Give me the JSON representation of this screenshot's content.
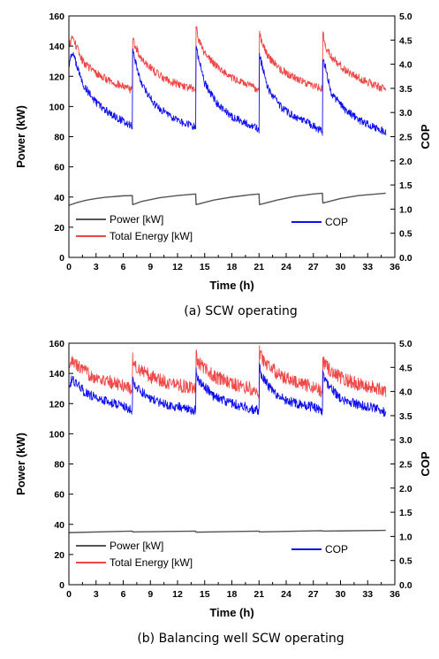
{
  "chart_data": [
    {
      "type": "line",
      "caption": "(a) SCW operating",
      "xlabel": "Time (h)",
      "ylabel": "Power (kW)",
      "y2label": "COP",
      "xlim": [
        0,
        36
      ],
      "ylim": [
        0,
        160
      ],
      "y2lim": [
        0,
        5.0
      ],
      "xticks": [
        0,
        3,
        6,
        9,
        12,
        15,
        18,
        21,
        24,
        27,
        30,
        33,
        36
      ],
      "yticks": [
        0,
        20,
        40,
        60,
        80,
        100,
        120,
        140,
        160
      ],
      "y2ticks": [
        "0.0",
        "0.5",
        "1.0",
        "1.5",
        "2.0",
        "2.5",
        "3.0",
        "3.5",
        "4.0",
        "4.5",
        "5.0"
      ],
      "legend": [
        "Power [kW]",
        "Total Energy [kW]",
        "COP"
      ],
      "colors": {
        "power": "#555555",
        "total_energy": "#ef4646",
        "cop": "#1010ee"
      },
      "series": [
        {
          "name": "Power [kW]",
          "axis": "left",
          "color": "#555555",
          "noise": 0,
          "x": [
            0,
            1,
            2,
            3,
            4,
            5,
            6,
            7,
            7.05,
            8,
            10,
            12,
            14,
            14.05,
            16,
            18,
            20,
            21,
            21.05,
            23,
            25,
            27,
            28,
            28.05,
            30,
            32,
            34,
            35
          ],
          "y": [
            34.5,
            36.5,
            38,
            39,
            39.8,
            40.3,
            40.8,
            41,
            35,
            37,
            39.5,
            41,
            42,
            35,
            38,
            40,
            41.5,
            42,
            35,
            38,
            40.5,
            42,
            42.5,
            36,
            39,
            41,
            42,
            42.5
          ]
        },
        {
          "name": "Total Energy [kW]",
          "axis": "left",
          "color": "#ef4646",
          "noise": 2.6,
          "x": [
            0,
            0.4,
            1.5,
            3,
            4.5,
            6,
            7,
            7.05,
            7.3,
            8,
            9.5,
            11,
            12.5,
            14,
            14.05,
            14.3,
            15,
            16.5,
            18,
            19.5,
            21,
            21.05,
            21.3,
            22,
            23.5,
            25,
            26.5,
            28,
            28.05,
            28.3,
            29,
            30.5,
            32,
            33.5,
            35
          ],
          "y": [
            140,
            146,
            130,
            122,
            117,
            113,
            111,
            146,
            140,
            132,
            123,
            117,
            114,
            111,
            154,
            145,
            135,
            126,
            119,
            115,
            111,
            150,
            143,
            133,
            124,
            119,
            115,
            112,
            150,
            140,
            133,
            124,
            119,
            115,
            111
          ]
        },
        {
          "name": "COP",
          "axis": "right",
          "color": "#1010ee",
          "noise": 0.08,
          "x": [
            0,
            0.4,
            1.5,
            3,
            4.5,
            6,
            7,
            7.05,
            7.3,
            8,
            9.5,
            11,
            12.5,
            14,
            14.05,
            14.3,
            15,
            16.5,
            18,
            19.5,
            21,
            21.05,
            21.3,
            22,
            23.5,
            25,
            26.5,
            28,
            28.05,
            28.3,
            29,
            30.5,
            32,
            33.5,
            35
          ],
          "y": [
            4.0,
            4.25,
            3.6,
            3.2,
            2.98,
            2.82,
            2.72,
            4.3,
            4.1,
            3.6,
            3.15,
            2.95,
            2.8,
            2.7,
            4.4,
            4.15,
            3.6,
            3.15,
            2.92,
            2.78,
            2.65,
            4.2,
            4.0,
            3.5,
            3.1,
            2.9,
            2.78,
            2.6,
            4.1,
            3.95,
            3.4,
            3.05,
            2.85,
            2.72,
            2.6
          ]
        }
      ]
    },
    {
      "type": "line",
      "caption": "(b) Balancing well SCW operating",
      "xlabel": "Time (h)",
      "ylabel": "Power (kW)",
      "y2label": "COP",
      "xlim": [
        0,
        36
      ],
      "ylim": [
        0,
        160
      ],
      "y2lim": [
        0,
        5.0
      ],
      "xticks": [
        0,
        3,
        6,
        9,
        12,
        15,
        18,
        21,
        24,
        27,
        30,
        33,
        36
      ],
      "yticks": [
        0,
        20,
        40,
        60,
        80,
        100,
        120,
        140,
        160
      ],
      "y2ticks": [
        "0.0",
        "0.5",
        "1.0",
        "1.5",
        "2.0",
        "2.5",
        "3.0",
        "3.5",
        "4.0",
        "4.5",
        "5.0"
      ],
      "legend": [
        "Power [kW]",
        "Total Energy [kW]",
        "COP"
      ],
      "colors": {
        "power": "#555555",
        "total_energy": "#ef4646",
        "cop": "#1010ee"
      },
      "series": [
        {
          "name": "Power [kW]",
          "axis": "left",
          "color": "#555555",
          "noise": 0,
          "x": [
            0,
            7,
            7.05,
            14,
            14.05,
            21,
            21.05,
            28,
            28.05,
            35
          ],
          "y": [
            34.5,
            35.5,
            35,
            35.5,
            34.8,
            35.5,
            35,
            35.8,
            35.5,
            36
          ]
        },
        {
          "name": "Total Energy [kW]",
          "axis": "left",
          "color": "#ef4646",
          "noise": 4.5,
          "x": [
            0,
            0.3,
            2,
            4,
            6,
            7,
            7.05,
            7.3,
            9,
            11,
            13,
            14,
            14.05,
            14.3,
            16,
            18,
            20,
            21,
            21.05,
            21.3,
            23,
            25,
            27,
            28,
            28.05,
            28.3,
            30,
            32,
            34,
            35
          ],
          "y": [
            140,
            148,
            140,
            135,
            132,
            130,
            150,
            145,
            138,
            134,
            131,
            129,
            152,
            147,
            138,
            133,
            130,
            128,
            154,
            150,
            140,
            134,
            131,
            128,
            148,
            145,
            137,
            133,
            130,
            128
          ]
        },
        {
          "name": "COP",
          "axis": "right",
          "color": "#1010ee",
          "noise": 0.1,
          "x": [
            0,
            0.3,
            2,
            4,
            6,
            7,
            7.05,
            7.3,
            9,
            11,
            13,
            14,
            14.05,
            14.3,
            16,
            18,
            20,
            21,
            21.05,
            21.3,
            23,
            25,
            27,
            28,
            28.05,
            28.3,
            30,
            32,
            34,
            35
          ],
          "y": [
            4.1,
            4.25,
            3.95,
            3.8,
            3.7,
            3.6,
            4.3,
            4.1,
            3.85,
            3.72,
            3.65,
            3.6,
            4.4,
            4.25,
            3.9,
            3.75,
            3.65,
            3.6,
            4.5,
            4.3,
            3.9,
            3.75,
            3.68,
            3.6,
            4.35,
            4.2,
            3.85,
            3.72,
            3.65,
            3.55
          ]
        }
      ]
    }
  ]
}
